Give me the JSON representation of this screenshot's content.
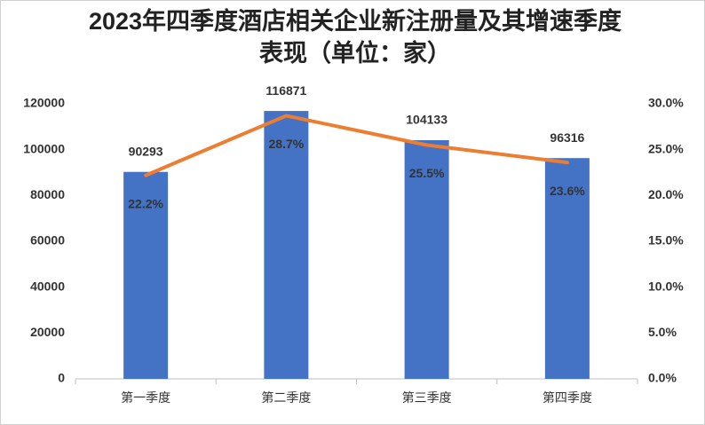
{
  "chart_data": {
    "type": "combo",
    "title": "2023年四季度酒店相关企业新注册量及其增速季度表现（单位：家）",
    "categories": [
      "第一季度",
      "第二季度",
      "第三季度",
      "第四季度"
    ],
    "series": [
      {
        "type": "bar",
        "color": "#4472c4",
        "values": [
          90293,
          116871,
          104133,
          96316
        ]
      },
      {
        "type": "line",
        "color": "#ed7d31",
        "axis": "y2",
        "values": [
          22.2,
          28.7,
          25.5,
          23.6
        ],
        "value_labels": [
          "22.2%",
          "28.7%",
          "25.5%",
          "23.6%"
        ]
      }
    ],
    "ylim": [
      0,
      120000
    ],
    "yticks": [
      0,
      20000,
      40000,
      60000,
      80000,
      100000,
      120000
    ],
    "y2lim": [
      0,
      30
    ],
    "y2ticks": [
      {
        "value": 0,
        "label": "0.0%"
      },
      {
        "value": 5,
        "label": "5.0%"
      },
      {
        "value": 10,
        "label": "10.0%"
      },
      {
        "value": 15,
        "label": "15.0%"
      },
      {
        "value": 20,
        "label": "20.0%"
      },
      {
        "value": 25,
        "label": "25.0%"
      },
      {
        "value": 30,
        "label": "30.0%"
      }
    ],
    "grid": false
  }
}
